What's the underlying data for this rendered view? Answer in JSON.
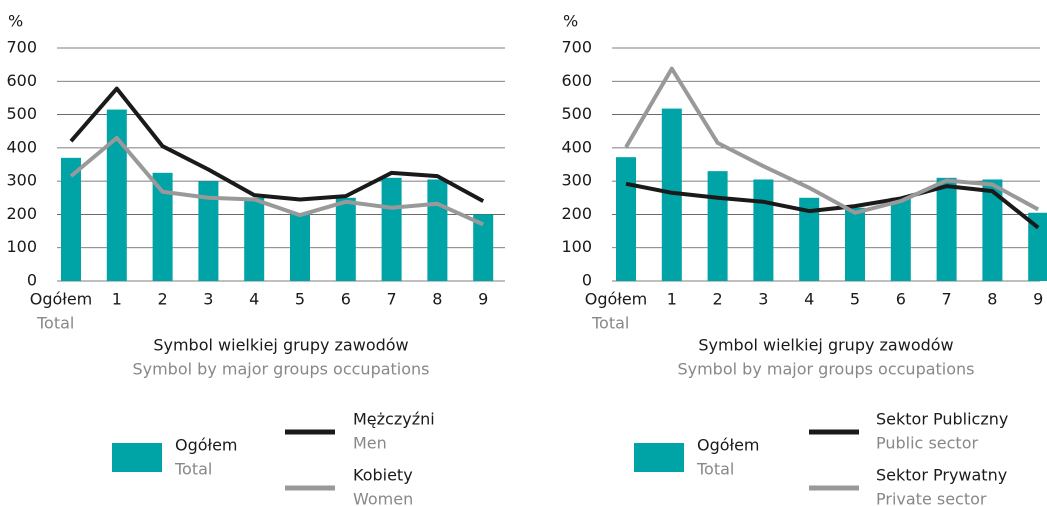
{
  "chart_data": [
    {
      "type": "combo",
      "y_unit": "%",
      "categories": [
        "Ogółem",
        "1",
        "2",
        "3",
        "4",
        "5",
        "6",
        "7",
        "8",
        "9"
      ],
      "category_sublabel": "Total",
      "x_label": "Symbol wielkiej grupy zawodów",
      "x_label_en": "Symbol by major groups occupations",
      "ylim": [
        0,
        700
      ],
      "yticks": [
        0,
        100,
        200,
        300,
        400,
        500,
        600,
        700
      ],
      "grid": true,
      "series": [
        {
          "name": "Ogółem",
          "name_en": "Total",
          "kind": "bar",
          "color": "#00a3a6",
          "values": [
            370,
            515,
            325,
            300,
            250,
            200,
            250,
            310,
            305,
            200
          ]
        },
        {
          "name": "Mężczyźni",
          "name_en": "Men",
          "kind": "line",
          "color": "#1a1a1a",
          "values": [
            420,
            578,
            405,
            335,
            258,
            245,
            255,
            325,
            315,
            240
          ]
        },
        {
          "name": "Kobiety",
          "name_en": "Women",
          "kind": "line",
          "color": "#999999",
          "values": [
            315,
            430,
            268,
            250,
            245,
            198,
            238,
            220,
            232,
            170
          ]
        }
      ]
    },
    {
      "type": "combo",
      "y_unit": "%",
      "categories": [
        "Ogółem",
        "1",
        "2",
        "3",
        "4",
        "5",
        "6",
        "7",
        "8",
        "9"
      ],
      "category_sublabel": "Total",
      "x_label": "Symbol wielkiej grupy zawodów",
      "x_label_en": "Symbol by major groups occupations",
      "ylim": [
        0,
        700
      ],
      "yticks": [
        0,
        100,
        200,
        300,
        400,
        500,
        600,
        700
      ],
      "grid": true,
      "series": [
        {
          "name": "Ogółem",
          "name_en": "Total",
          "kind": "bar",
          "color": "#00a3a6",
          "values": [
            372,
            518,
            330,
            305,
            250,
            220,
            250,
            310,
            305,
            205
          ]
        },
        {
          "name": "Sektor Publiczny",
          "name_en": "Public sector",
          "kind": "line",
          "color": "#1a1a1a",
          "values": [
            292,
            265,
            250,
            238,
            210,
            225,
            248,
            285,
            270,
            160
          ]
        },
        {
          "name": "Sektor Prywatny",
          "name_en": "Private sector",
          "kind": "line",
          "color": "#999999",
          "values": [
            402,
            638,
            415,
            345,
            280,
            205,
            240,
            302,
            290,
            215
          ]
        }
      ]
    }
  ]
}
